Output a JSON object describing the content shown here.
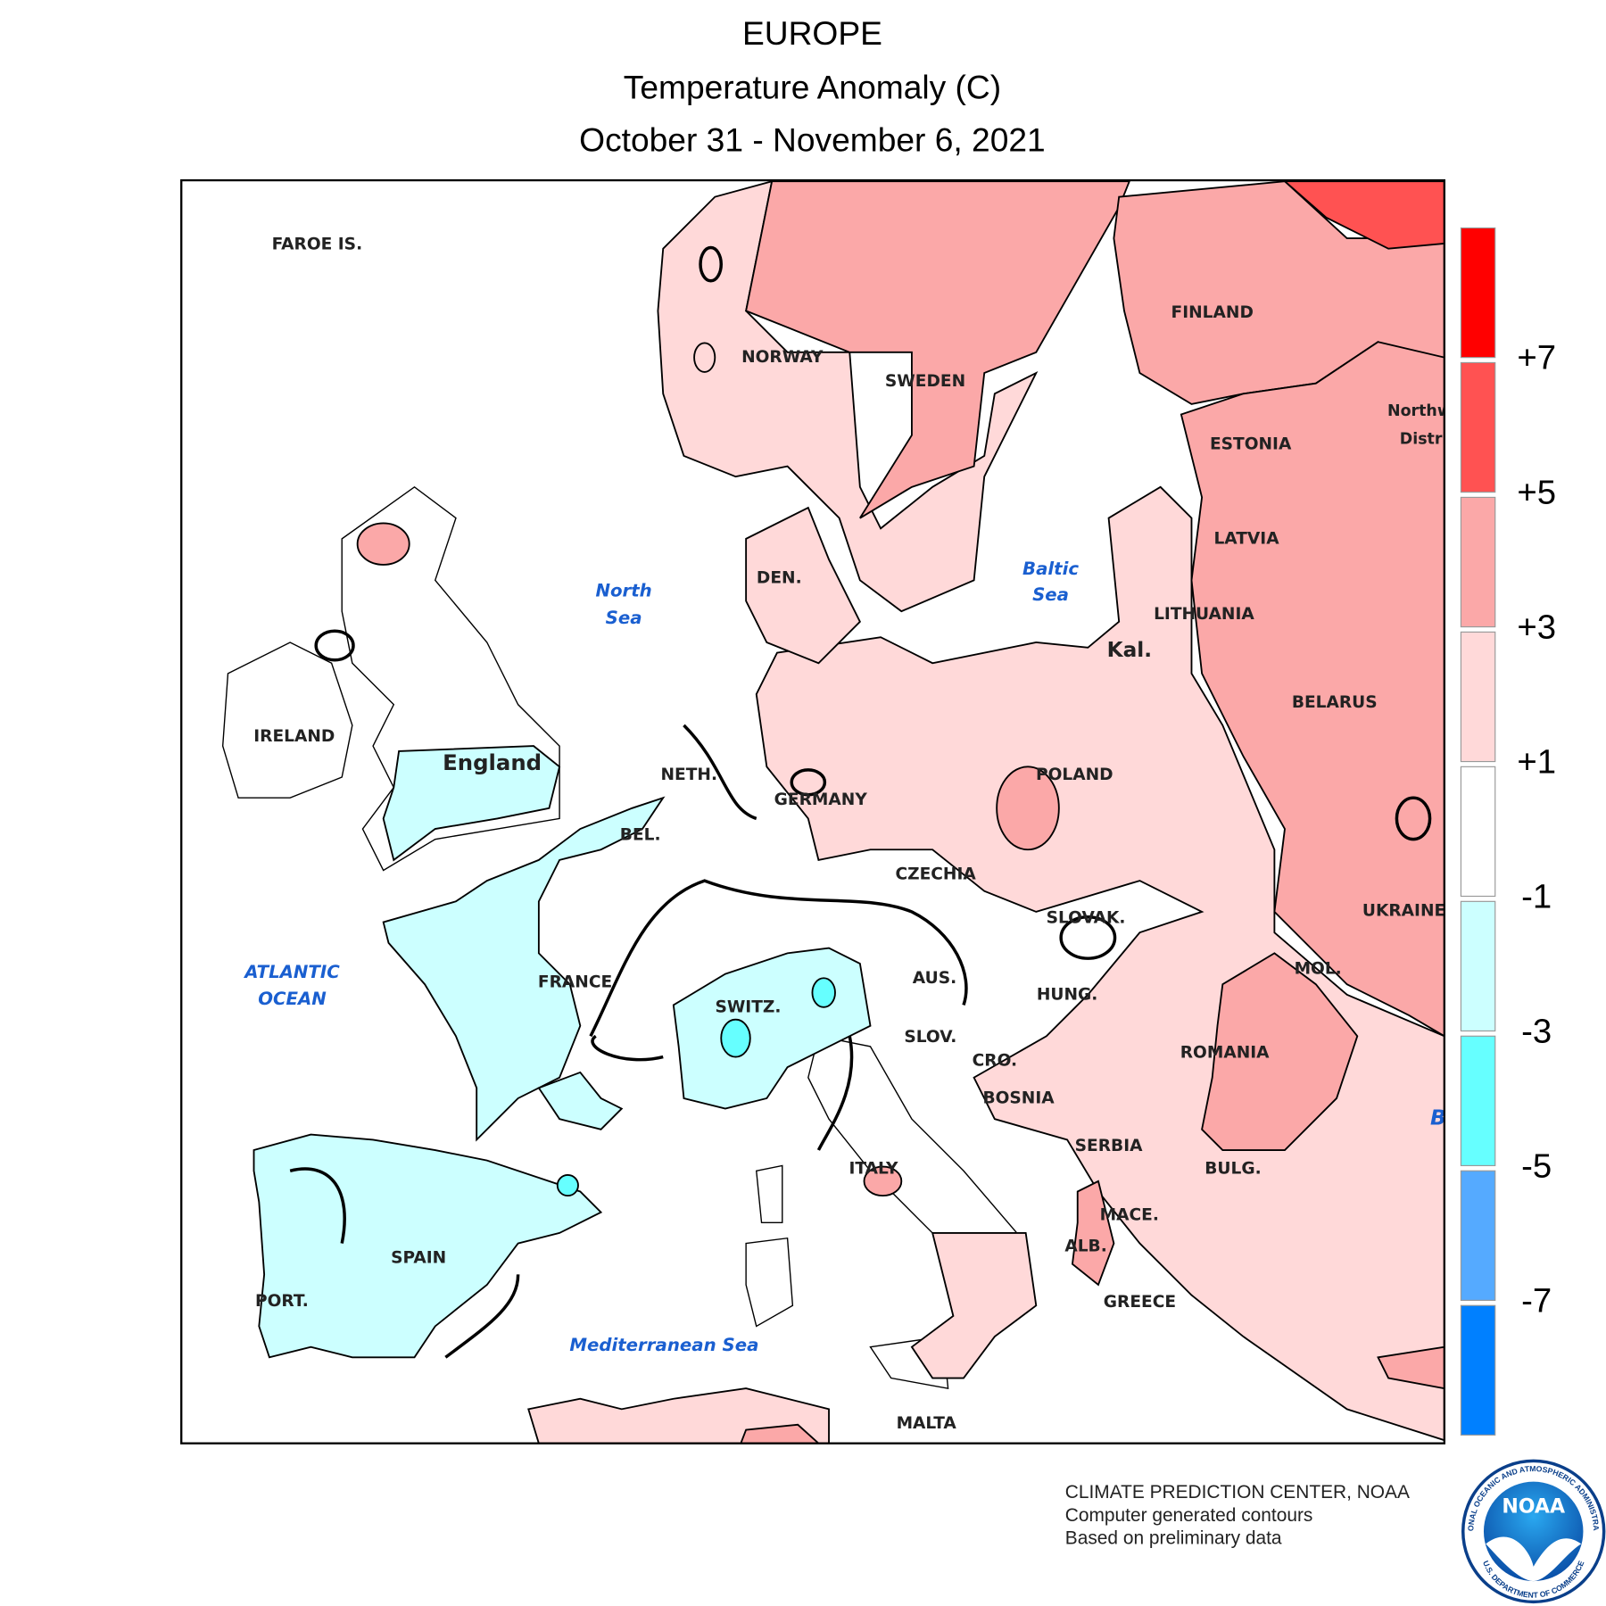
{
  "header": {
    "title": "EUROPE",
    "subtitle": "Temperature Anomaly (C)",
    "dates": "October 31 - November 6, 2021"
  },
  "map": {
    "labels": [
      "FAROE IS.",
      "NORWAY",
      "SWEDEN",
      "FINLAND",
      "ESTONIA",
      "LATVIA",
      "LITHUANIA",
      "Kal.",
      "BELARUS",
      "POLAND",
      "GERMANY",
      "DEN.",
      "NETH.",
      "BEL.",
      "England",
      "IRELAND",
      "CZECHIA",
      "SLOVAK.",
      "UKRAINE",
      "MOL.",
      "AUS.",
      "HUNG.",
      "SWITZ.",
      "FRANCE",
      "SLOV.",
      "CRO.",
      "ROMANIA",
      "BOSNIA",
      "SERBIA",
      "ITALY",
      "BULG.",
      "MACE.",
      "ALB.",
      "GREECE",
      "SPAIN",
      "PORT.",
      "MALTA",
      "Northw",
      "Distri"
    ],
    "water_labels": [
      "ATLANTIC",
      "OCEAN",
      "North",
      "Sea",
      "Baltic",
      "Sea",
      "Mediterranean Sea",
      "B"
    ]
  },
  "legend": {
    "colors": [
      "#ff0000",
      "#ff5252",
      "#fba8a8",
      "#ffd9d9",
      "#ffffff",
      "#ccffff",
      "#66ffff",
      "#55aaff",
      "#0080ff"
    ],
    "labels": [
      "+7",
      "+5",
      "+3",
      "+1",
      "-1",
      "-3",
      "-5",
      "-7"
    ]
  },
  "footer": {
    "lines": [
      "CLIMATE PREDICTION CENTER, NOAA",
      "Computer generated contours",
      "Based on preliminary data"
    ]
  },
  "logo": {
    "text": "NOAA",
    "rim_top": "NATIONAL OCEANIC AND ATMOSPHERIC ADMINISTRATION",
    "rim_bottom": "U.S. DEPARTMENT OF COMMERCE"
  }
}
